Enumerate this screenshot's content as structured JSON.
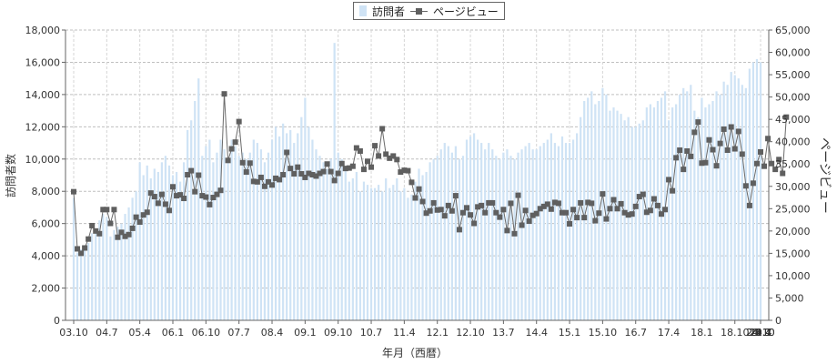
{
  "chart_data": {
    "type": "bar+line",
    "xlabel": "年月（西暦）",
    "ylabel_left": "訪問者数",
    "ylabel_right": "ページビュー",
    "ylim_left": [
      0,
      18000
    ],
    "ylim_right": [
      0,
      65000
    ],
    "yticks_left": [
      "0",
      "2,000",
      "4,000",
      "6,000",
      "8,000",
      "10,000",
      "12,000",
      "14,000",
      "16,000",
      "18,000"
    ],
    "yticks_right": [
      "0",
      "5,000",
      "10,000",
      "15,000",
      "20,000",
      "25,000",
      "30,000",
      "35,000",
      "40,000",
      "45,000",
      "50,000",
      "55,000",
      "60,000",
      "65,000"
    ],
    "x_ticklabels": [
      "03.10",
      "04.7",
      "05.4",
      "06.1",
      "06.10",
      "07.7",
      "08.4",
      "09.1",
      "09.10",
      "10.7",
      "11.4",
      "12.1",
      "12.10",
      "13.7",
      "14.4",
      "15.1",
      "15.10",
      "16.7",
      "17.4",
      "18.1",
      "18.10",
      "19.7",
      "20.4",
      "21.1",
      "21.10",
      "22.7",
      "23.4",
      "24.1",
      "24.10"
    ],
    "grid": true,
    "legend": "top-center",
    "series": [
      {
        "name": "訪問者",
        "kind": "bar",
        "color": "#cfe3f5",
        "start": "2003-10",
        "note": "monthly visitors, approximate",
        "values": [
          7600,
          4200,
          4400,
          4600,
          4800,
          5400,
          5600,
          6200,
          6600,
          6400,
          5200,
          5600,
          5800,
          6000,
          6600,
          7000,
          7600,
          8000,
          9800,
          9000,
          9600,
          8800,
          9400,
          9200,
          9800,
          10200,
          9600,
          9000,
          9200,
          8600,
          9800,
          11800,
          12400,
          13600,
          15000,
          10200,
          10800,
          11200,
          9800,
          10400,
          11200,
          10600,
          10000,
          11200,
          10800,
          10200,
          10400,
          10000,
          10400,
          11200,
          11000,
          10600,
          9800,
          10400,
          11200,
          12000,
          11400,
          12200,
          11600,
          11800,
          11000,
          11600,
          12600,
          13800,
          12000,
          11200,
          10600,
          10200,
          9800,
          9400,
          10000,
          17200,
          10400,
          10000,
          9400,
          8600,
          8800,
          9200,
          8000,
          8600,
          8400,
          8200,
          8200,
          8400,
          8000,
          8800,
          8200,
          8400,
          8800,
          8000,
          8200,
          7600,
          7800,
          8600,
          9400,
          9000,
          9200,
          9800,
          10000,
          10200,
          10600,
          11000,
          10800,
          10400,
          10800,
          10000,
          10200,
          11200,
          11400,
          11600,
          11200,
          11000,
          10600,
          11000,
          10600,
          10200,
          10000,
          10400,
          10600,
          10200,
          10000,
          10400,
          10600,
          10800,
          11000,
          10600,
          10600,
          10800,
          11000,
          11200,
          11600,
          11000,
          10800,
          11400,
          11000,
          11000,
          11200,
          11600,
          12600,
          13600,
          13800,
          14200,
          13400,
          13600,
          14400,
          14000,
          13000,
          13200,
          13000,
          12800,
          12400,
          12600,
          12000,
          12000,
          12200,
          12400,
          13200,
          13400,
          13200,
          13600,
          13800,
          14200,
          12400,
          13200,
          13400,
          14000,
          14400,
          14200,
          14600,
          13000,
          12600,
          13800,
          13200,
          13400,
          13600,
          14200,
          14000,
          14800,
          14600,
          15400,
          15200,
          15000,
          14600,
          14400,
          15600,
          16000,
          16200,
          16000
        ]
      },
      {
        "name": "ページビュー",
        "kind": "line",
        "color": "#5f5f5f",
        "start": "2003-10",
        "note": "monthly page views, approximate",
        "values": [
          28800,
          16000,
          15000,
          16200,
          18200,
          21200,
          20000,
          19400,
          24800,
          24800,
          21700,
          24800,
          18600,
          19700,
          18800,
          19200,
          20600,
          23100,
          22000,
          23600,
          24200,
          28500,
          27700,
          26200,
          28200,
          26000,
          24600,
          29900,
          27900,
          28100,
          27300,
          32600,
          33500,
          28800,
          32500,
          27900,
          27600,
          25900,
          27500,
          28200,
          29100,
          50700,
          35800,
          38400,
          39900,
          44500,
          35300,
          33200,
          35200,
          31100,
          31000,
          32000,
          30000,
          31000,
          30300,
          31800,
          31500,
          32600,
          37600,
          34000,
          32800,
          34300,
          32800,
          32000,
          32900,
          32600,
          32300,
          32900,
          33300,
          35000,
          33300,
          31300,
          32900,
          35100,
          34000,
          34100,
          34500,
          38600,
          37900,
          33800,
          35600,
          34300,
          39100,
          36800,
          42900,
          37200,
          36300,
          36800,
          36000,
          33200,
          33600,
          33500,
          30900,
          27400,
          29400,
          26600,
          24000,
          24500,
          26300,
          24700,
          24800,
          23400,
          25700,
          24500,
          27900,
          20300,
          24100,
          25200,
          23600,
          21700,
          25400,
          25700,
          24100,
          26300,
          26300,
          24100,
          23100,
          24800,
          20100,
          26200,
          19400,
          28000,
          21300,
          24600,
          22200,
          23500,
          23900,
          25000,
          25500,
          26000,
          24900,
          26400,
          26200,
          24100,
          24100,
          21600,
          24800,
          23000,
          26300,
          23000,
          26400,
          26200,
          22300,
          24000,
          28300,
          22700,
          25000,
          27000,
          25000,
          26100,
          24100,
          23600,
          23800,
          25500,
          27700,
          28200,
          24200,
          24600,
          27200,
          25700,
          23800,
          24800,
          31500,
          29000,
          36400,
          38100,
          33800,
          37900,
          36700,
          42100,
          44400,
          35200,
          35300,
          40400,
          38200,
          34600,
          39600,
          42800,
          38100,
          43300,
          38400,
          42300,
          37200,
          30100,
          25700,
          30700,
          35100,
          37700,
          34500,
          40700,
          35100,
          33800,
          36000,
          32900,
          45500
        ]
      }
    ]
  }
}
